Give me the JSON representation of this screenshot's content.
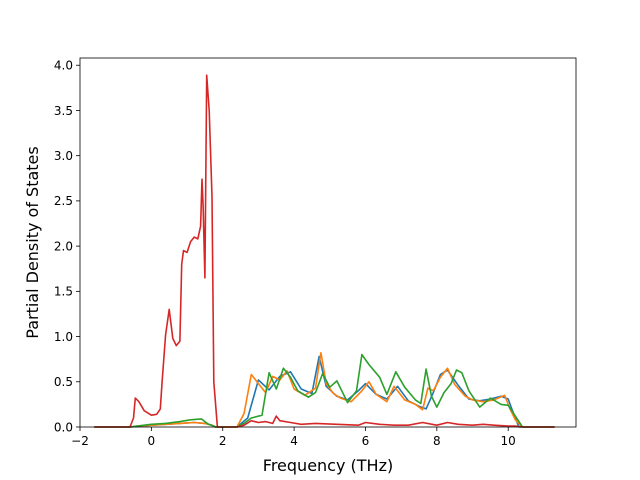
{
  "chart_data": {
    "type": "line",
    "title": "",
    "xlabel": "Frequency (THz)",
    "ylabel": "Partial Density of States",
    "xlim": [
      -2.0,
      11.9
    ],
    "ylim": [
      0.0,
      4.08
    ],
    "xticks": [
      -2,
      0,
      2,
      4,
      6,
      8,
      10
    ],
    "yticks": [
      0.0,
      0.5,
      1.0,
      1.5,
      2.0,
      2.5,
      3.0,
      3.5,
      4.0
    ],
    "ytick_labels": [
      "0.0",
      "0.5",
      "1.0",
      "1.5",
      "2.0",
      "2.5",
      "3.0",
      "3.5",
      "4.0"
    ],
    "grid": false,
    "legend": "none",
    "series": [
      {
        "color": "#1f77b4",
        "x": [
          -1.6,
          -0.6,
          -0.4,
          0.0,
          0.4,
          0.8,
          1.2,
          1.5,
          1.7,
          1.8,
          2.4,
          2.7,
          3.0,
          3.3,
          3.6,
          3.9,
          4.2,
          4.5,
          4.7,
          4.9,
          5.2,
          5.5,
          5.8,
          6.0,
          6.3,
          6.6,
          6.9,
          7.2,
          7.5,
          7.7,
          7.9,
          8.1,
          8.3,
          8.6,
          8.9,
          9.2,
          9.5,
          9.8,
          10.0,
          10.1,
          10.3,
          11.3
        ],
        "y": [
          0.0,
          0.0,
          0.005,
          0.02,
          0.03,
          0.04,
          0.05,
          0.04,
          0.02,
          0.0,
          0.0,
          0.1,
          0.52,
          0.41,
          0.56,
          0.61,
          0.42,
          0.37,
          0.78,
          0.45,
          0.34,
          0.3,
          0.4,
          0.48,
          0.36,
          0.31,
          0.45,
          0.29,
          0.23,
          0.2,
          0.38,
          0.58,
          0.63,
          0.46,
          0.31,
          0.29,
          0.31,
          0.34,
          0.31,
          0.2,
          0.0,
          0.0
        ]
      },
      {
        "color": "#ff7f0e",
        "x": [
          -1.6,
          -0.6,
          -0.4,
          0.0,
          0.4,
          0.8,
          1.2,
          1.5,
          1.7,
          1.8,
          2.4,
          2.6,
          2.8,
          3.0,
          3.2,
          3.4,
          3.6,
          3.8,
          4.0,
          4.3,
          4.6,
          4.75,
          4.9,
          5.1,
          5.3,
          5.6,
          5.9,
          6.1,
          6.3,
          6.6,
          6.8,
          7.1,
          7.4,
          7.6,
          7.75,
          7.9,
          8.1,
          8.3,
          8.5,
          8.8,
          9.0,
          9.3,
          9.6,
          9.9,
          10.05,
          10.2,
          10.4,
          11.3
        ],
        "y": [
          0.0,
          0.0,
          0.01,
          0.02,
          0.03,
          0.04,
          0.05,
          0.04,
          0.02,
          0.0,
          0.0,
          0.15,
          0.58,
          0.48,
          0.38,
          0.56,
          0.52,
          0.62,
          0.42,
          0.35,
          0.43,
          0.82,
          0.48,
          0.37,
          0.32,
          0.28,
          0.4,
          0.5,
          0.36,
          0.28,
          0.45,
          0.3,
          0.25,
          0.19,
          0.43,
          0.4,
          0.55,
          0.65,
          0.47,
          0.34,
          0.3,
          0.28,
          0.3,
          0.35,
          0.2,
          0.08,
          0.0,
          0.0
        ]
      },
      {
        "color": "#2ca02c",
        "x": [
          -1.6,
          -0.6,
          -0.4,
          0.0,
          0.4,
          0.8,
          1.1,
          1.4,
          1.6,
          1.75,
          1.8,
          2.4,
          2.6,
          2.8,
          3.1,
          3.3,
          3.5,
          3.7,
          3.9,
          4.1,
          4.4,
          4.6,
          4.8,
          5.0,
          5.2,
          5.5,
          5.75,
          5.9,
          6.1,
          6.4,
          6.6,
          6.85,
          7.1,
          7.4,
          7.55,
          7.7,
          7.85,
          8.0,
          8.2,
          8.4,
          8.55,
          8.7,
          8.9,
          9.2,
          9.5,
          9.8,
          10.0,
          10.2,
          10.4,
          11.3
        ],
        "y": [
          0.0,
          0.0,
          0.01,
          0.03,
          0.04,
          0.06,
          0.08,
          0.09,
          0.03,
          0.01,
          0.0,
          0.0,
          0.04,
          0.1,
          0.13,
          0.6,
          0.42,
          0.65,
          0.55,
          0.4,
          0.33,
          0.38,
          0.59,
          0.44,
          0.51,
          0.27,
          0.4,
          0.8,
          0.69,
          0.55,
          0.36,
          0.61,
          0.44,
          0.3,
          0.26,
          0.64,
          0.34,
          0.22,
          0.38,
          0.48,
          0.63,
          0.6,
          0.4,
          0.22,
          0.32,
          0.25,
          0.24,
          0.12,
          0.0,
          0.0
        ]
      },
      {
        "color": "#d62728",
        "x": [
          -1.6,
          -0.6,
          -0.5,
          -0.45,
          -0.35,
          -0.2,
          0.0,
          0.15,
          0.25,
          0.3,
          0.4,
          0.5,
          0.6,
          0.7,
          0.8,
          0.85,
          0.9,
          1.0,
          1.1,
          1.2,
          1.3,
          1.38,
          1.42,
          1.45,
          1.5,
          1.55,
          1.62,
          1.7,
          1.75,
          1.85,
          2.4,
          2.6,
          2.8,
          3.0,
          3.2,
          3.4,
          3.5,
          3.6,
          3.9,
          4.2,
          4.6,
          5.2,
          5.8,
          6.0,
          6.4,
          6.8,
          7.2,
          7.6,
          8.0,
          8.3,
          8.6,
          9.0,
          9.3,
          9.6,
          10.0,
          10.2,
          10.4,
          11.3
        ],
        "y": [
          0.0,
          0.0,
          0.1,
          0.32,
          0.28,
          0.18,
          0.13,
          0.14,
          0.2,
          0.5,
          1.02,
          1.3,
          0.98,
          0.9,
          0.95,
          1.8,
          1.95,
          1.93,
          2.05,
          2.1,
          2.08,
          2.22,
          2.74,
          2.45,
          1.65,
          3.89,
          3.5,
          2.55,
          0.5,
          0.0,
          0.0,
          0.02,
          0.07,
          0.05,
          0.06,
          0.04,
          0.12,
          0.07,
          0.05,
          0.03,
          0.04,
          0.03,
          0.02,
          0.05,
          0.03,
          0.02,
          0.02,
          0.05,
          0.02,
          0.05,
          0.03,
          0.02,
          0.03,
          0.02,
          0.01,
          0.01,
          0.0,
          0.0
        ]
      }
    ]
  }
}
